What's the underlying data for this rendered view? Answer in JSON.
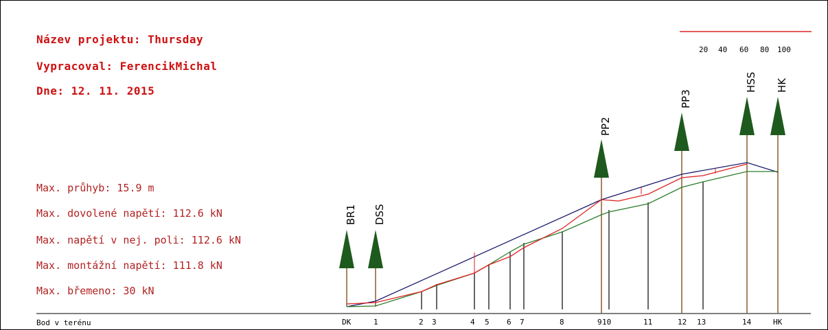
{
  "header": {
    "project": "Název projektu: Thursday",
    "author": "Vypracoval: FerencikMichal",
    "date": "Dne: 12. 11. 2015"
  },
  "stats": [
    "Max. průhyb: 15.9 m",
    "Max. dovolené napětí: 112.6 kN",
    "Max. napětí v nej. poli: 112.6 kN",
    "Max. montážní napětí: 111.8 kN",
    "Max. břemeno: 30 kN"
  ],
  "scale": {
    "ticks": [
      "20",
      "40",
      "60",
      "80",
      "100"
    ]
  },
  "axis_label": "Bod v terénu",
  "points": [
    "DK",
    "1",
    "2",
    "3",
    "4",
    "5",
    "6",
    "7",
    "8",
    "9",
    "10",
    "11",
    "12",
    "13",
    "14",
    "HK"
  ],
  "supports": [
    "BR1",
    "DSS",
    "PP2",
    "PP3",
    "HSS",
    "HK"
  ],
  "colors": {
    "title": "#cc1111",
    "stats": "#b22222",
    "support_tree": "#1e5a1e",
    "cable_top": "#1a1a6e",
    "cable_load": "#dd2222",
    "terrain": "#2e7d2e",
    "mast": "#8b5a2b"
  }
}
